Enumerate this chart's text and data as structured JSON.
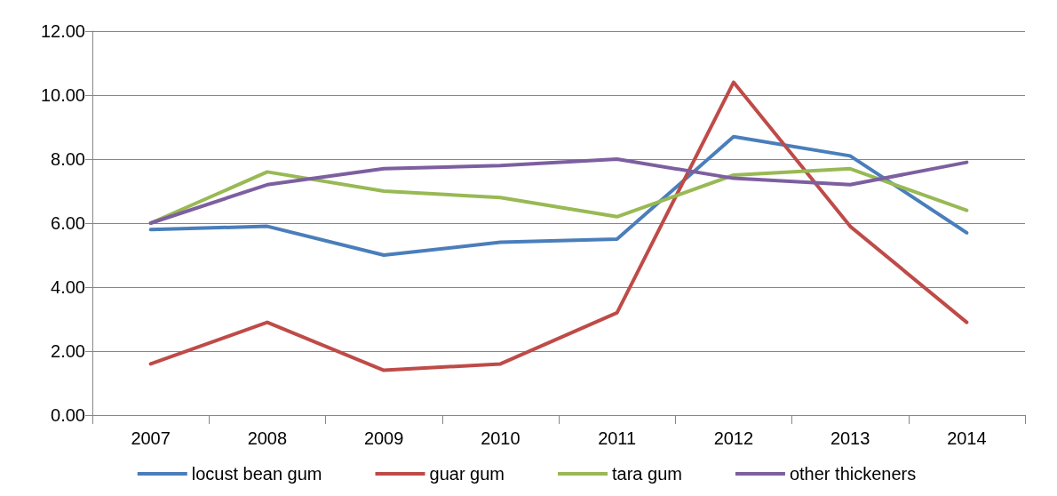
{
  "chart_data": {
    "type": "line",
    "categories": [
      "2007",
      "2008",
      "2009",
      "2010",
      "2011",
      "2012",
      "2013",
      "2014"
    ],
    "series": [
      {
        "name": "locust bean gum",
        "color": "#4a7ebb",
        "values": [
          5.8,
          5.9,
          5.0,
          5.4,
          5.5,
          8.7,
          8.1,
          5.7
        ]
      },
      {
        "name": "guar gum",
        "color": "#be4b48",
        "values": [
          1.6,
          2.9,
          1.4,
          1.6,
          3.2,
          10.4,
          5.9,
          2.9
        ]
      },
      {
        "name": "tara gum",
        "color": "#98b954",
        "values": [
          6.0,
          7.6,
          7.0,
          6.8,
          6.2,
          7.5,
          7.7,
          6.4
        ]
      },
      {
        "name": "other thickeners",
        "color": "#7d5fa0",
        "values": [
          6.0,
          7.2,
          7.7,
          7.8,
          8.0,
          7.4,
          7.2,
          7.9
        ]
      }
    ],
    "ylim": [
      0,
      12
    ],
    "yticks": [
      {
        "value": 0,
        "label": "0.00"
      },
      {
        "value": 2,
        "label": "2.00"
      },
      {
        "value": 4,
        "label": "4.00"
      },
      {
        "value": 6,
        "label": "6.00"
      },
      {
        "value": 8,
        "label": "8.00"
      },
      {
        "value": 10,
        "label": "10.00"
      },
      {
        "value": 12,
        "label": "12.00"
      }
    ],
    "grid": "y",
    "legend": "bottom",
    "marker": "none",
    "line_style": "solid"
  }
}
